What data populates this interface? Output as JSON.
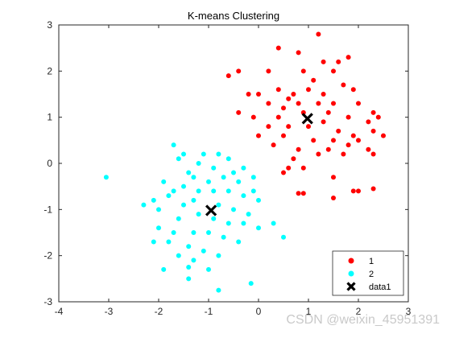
{
  "chart_data": {
    "type": "scatter",
    "title": "K-means Clustering",
    "xlabel": "",
    "ylabel": "",
    "xlim": [
      -4,
      3
    ],
    "ylim": [
      -3,
      3
    ],
    "xticks": [
      -4,
      -3,
      -2,
      -1,
      0,
      1,
      2,
      3
    ],
    "yticks": [
      -3,
      -2,
      -1,
      0,
      1,
      2,
      3
    ],
    "grid": false,
    "legend_position": "bottom-right",
    "series": [
      {
        "name": "1",
        "color": "#ff0000",
        "marker": "circle",
        "points": [
          [
            1.2,
            2.8
          ],
          [
            0.4,
            2.5
          ],
          [
            0.8,
            2.4
          ],
          [
            1.6,
            2.2
          ],
          [
            1.8,
            2.3
          ],
          [
            1.3,
            2.2
          ],
          [
            -0.4,
            2.0
          ],
          [
            -0.6,
            1.9
          ],
          [
            0.2,
            2.0
          ],
          [
            0.9,
            2.0
          ],
          [
            1.5,
            2.0
          ],
          [
            1.1,
            1.8
          ],
          [
            1.7,
            1.7
          ],
          [
            0.4,
            1.6
          ],
          [
            0.7,
            1.5
          ],
          [
            1.0,
            1.6
          ],
          [
            1.3,
            1.5
          ],
          [
            1.9,
            1.6
          ],
          [
            -0.2,
            1.5
          ],
          [
            0.0,
            1.5
          ],
          [
            0.6,
            1.4
          ],
          [
            0.2,
            1.3
          ],
          [
            0.5,
            1.2
          ],
          [
            0.8,
            1.3
          ],
          [
            1.2,
            1.3
          ],
          [
            1.5,
            1.3
          ],
          [
            2.0,
            1.3
          ],
          [
            2.3,
            1.1
          ],
          [
            -0.4,
            1.1
          ],
          [
            -0.1,
            1.0
          ],
          [
            0.4,
            1.0
          ],
          [
            0.9,
            1.1
          ],
          [
            1.4,
            1.1
          ],
          [
            1.8,
            1.0
          ],
          [
            2.2,
            0.9
          ],
          [
            2.4,
            1.0
          ],
          [
            0.2,
            0.8
          ],
          [
            0.6,
            0.8
          ],
          [
            1.0,
            0.8
          ],
          [
            1.3,
            0.9
          ],
          [
            1.6,
            0.7
          ],
          [
            1.9,
            0.6
          ],
          [
            2.3,
            0.7
          ],
          [
            0.0,
            0.6
          ],
          [
            0.5,
            0.6
          ],
          [
            1.1,
            0.5
          ],
          [
            1.5,
            0.5
          ],
          [
            2.0,
            0.5
          ],
          [
            2.5,
            0.6
          ],
          [
            0.3,
            0.4
          ],
          [
            0.8,
            0.3
          ],
          [
            1.4,
            0.3
          ],
          [
            1.8,
            0.4
          ],
          [
            2.2,
            0.3
          ],
          [
            0.7,
            0.1
          ],
          [
            1.2,
            0.2
          ],
          [
            1.7,
            0.2
          ],
          [
            2.3,
            0.2
          ],
          [
            0.6,
            -0.1
          ],
          [
            0.9,
            -0.1
          ],
          [
            0.5,
            -0.2
          ],
          [
            1.5,
            -0.3
          ],
          [
            2.0,
            -0.6
          ],
          [
            2.3,
            -0.55
          ],
          [
            0.8,
            -0.65
          ],
          [
            0.9,
            -0.65
          ],
          [
            1.5,
            -0.75
          ],
          [
            1.9,
            -0.6
          ]
        ]
      },
      {
        "name": "2",
        "color": "#00ffff",
        "marker": "circle",
        "points": [
          [
            -3.05,
            -0.3
          ],
          [
            -1.7,
            0.4
          ],
          [
            -1.6,
            0.1
          ],
          [
            -1.5,
            0.2
          ],
          [
            -1.4,
            -0.2
          ],
          [
            -1.1,
            0.2
          ],
          [
            -0.8,
            0.2
          ],
          [
            -1.2,
            0.0
          ],
          [
            -0.9,
            -0.1
          ],
          [
            -0.6,
            0.1
          ],
          [
            -0.3,
            -0.1
          ],
          [
            -0.1,
            -0.3
          ],
          [
            -1.3,
            -0.3
          ],
          [
            -1.0,
            -0.4
          ],
          [
            -0.7,
            -0.3
          ],
          [
            -0.4,
            -0.4
          ],
          [
            -0.1,
            -0.6
          ],
          [
            -1.7,
            -0.6
          ],
          [
            -1.5,
            -0.5
          ],
          [
            -1.2,
            -0.6
          ],
          [
            -0.9,
            -0.6
          ],
          [
            -0.6,
            -0.6
          ],
          [
            -0.3,
            -0.7
          ],
          [
            0.0,
            -0.8
          ],
          [
            -2.3,
            -0.9
          ],
          [
            -2.0,
            -1.0
          ],
          [
            -1.8,
            -0.7
          ],
          [
            -1.5,
            -0.9
          ],
          [
            -1.3,
            -0.8
          ],
          [
            -0.8,
            -0.9
          ],
          [
            -0.5,
            -1.0
          ],
          [
            -0.2,
            -1.1
          ],
          [
            -1.6,
            -1.2
          ],
          [
            -1.2,
            -1.1
          ],
          [
            -0.9,
            -1.2
          ],
          [
            -0.6,
            -1.3
          ],
          [
            -0.3,
            -1.3
          ],
          [
            0.3,
            -1.3
          ],
          [
            -2.0,
            -1.4
          ],
          [
            -1.7,
            -1.5
          ],
          [
            -1.3,
            -1.5
          ],
          [
            -1.0,
            -1.5
          ],
          [
            -0.7,
            -1.6
          ],
          [
            -0.4,
            -1.7
          ],
          [
            0.0,
            -1.4
          ],
          [
            0.5,
            -1.6
          ],
          [
            -2.1,
            -1.7
          ],
          [
            -1.8,
            -1.7
          ],
          [
            -1.4,
            -1.8
          ],
          [
            -1.1,
            -1.9
          ],
          [
            -0.8,
            -2.0
          ],
          [
            -1.6,
            -2.0
          ],
          [
            -1.3,
            -2.1
          ],
          [
            -1.9,
            -2.3
          ],
          [
            -1.4,
            -2.25
          ],
          [
            -1.0,
            -2.3
          ],
          [
            -1.4,
            -2.5
          ],
          [
            -0.8,
            -2.75
          ],
          [
            -0.15,
            -2.6
          ],
          [
            -1.9,
            -0.4
          ],
          [
            -2.1,
            -0.8
          ],
          [
            -0.5,
            -0.2
          ]
        ]
      }
    ],
    "centroids": {
      "name": "data1",
      "color": "#000000",
      "marker": "x",
      "points": [
        [
          0.98,
          0.97
        ],
        [
          -0.95,
          -1.02
        ]
      ]
    }
  },
  "watermark": "CSDN @weixin_45951391"
}
